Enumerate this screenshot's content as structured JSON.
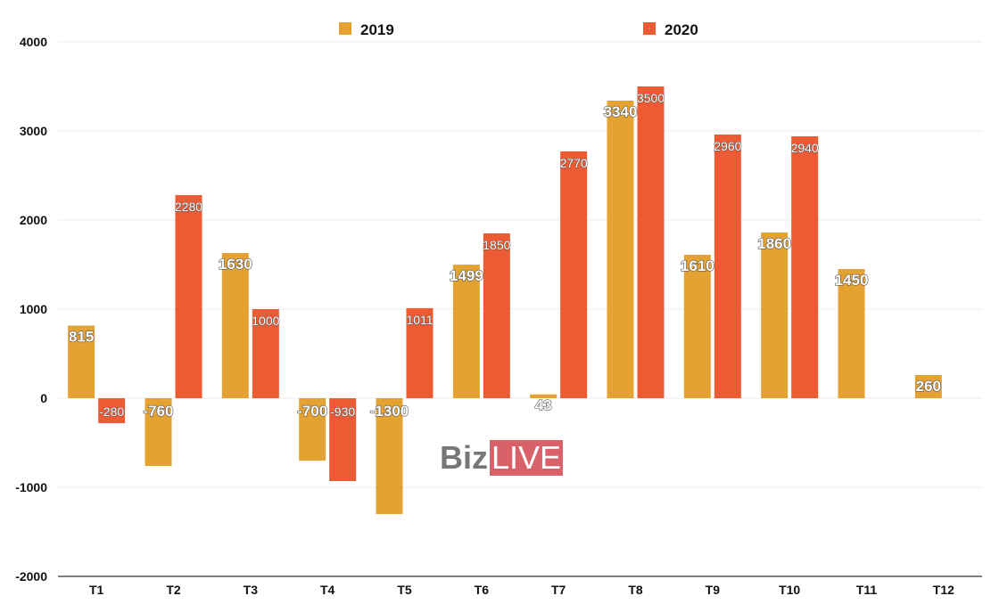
{
  "chart_data": {
    "type": "bar",
    "title": "",
    "xlabel": "",
    "ylabel": "",
    "categories": [
      "T1",
      "T2",
      "T3",
      "T4",
      "T5",
      "T6",
      "T7",
      "T8",
      "T9",
      "T10",
      "T11",
      "T12"
    ],
    "series": [
      {
        "name": "2019",
        "color": "#e4a233",
        "values": [
          815,
          -760,
          1630,
          -700,
          -1300,
          1499,
          43,
          3340,
          1610,
          1860,
          1450,
          260
        ]
      },
      {
        "name": "2020",
        "color": "#ec5b34",
        "values": [
          -280,
          2280,
          1000,
          -930,
          1011,
          1850,
          2770,
          3500,
          2960,
          2940,
          null,
          null
        ]
      }
    ],
    "ylim": [
      -2000,
      4000
    ],
    "yticks": [
      4000,
      3000,
      2000,
      1000,
      0,
      -1000,
      -2000
    ],
    "grid": true,
    "legend_position": "top-center",
    "data_labels": true
  },
  "watermark": {
    "part1": "Biz",
    "part2": "LIVE"
  }
}
